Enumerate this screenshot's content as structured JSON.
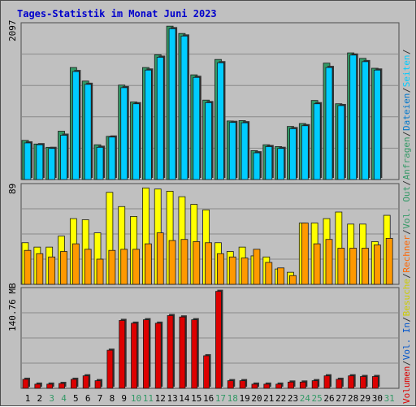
{
  "chart_data": {
    "type": "bar",
    "title": "Tages-Statistik im Monat Juni 2023",
    "colors": {
      "title": "#0000cc",
      "anfragen": "#339966",
      "dateien": "#00ccff",
      "seiten": "#00ccff",
      "besuche": "#ffff00",
      "rechner": "#ff9900",
      "volumen": "#dd0000",
      "weekday_label": "#000000",
      "weekend_label": "#339966",
      "panel_line": "#8a8a8a"
    },
    "categories": [
      "1",
      "2",
      "3",
      "4",
      "5",
      "6",
      "7",
      "8",
      "9",
      "10",
      "11",
      "12",
      "13",
      "14",
      "15",
      "16",
      "17",
      "18",
      "19",
      "20",
      "21",
      "22",
      "23",
      "24",
      "25",
      "26",
      "27",
      "28",
      "29",
      "30",
      "31"
    ],
    "weekend_days": [
      "3",
      "4",
      "10",
      "11",
      "17",
      "18",
      "24",
      "25",
      "31"
    ],
    "panels": [
      {
        "id": "top",
        "ymax": 2097,
        "ymax_label": "2097",
        "right_labels": [
          {
            "text": "Anfragen",
            "color": "#339966"
          },
          {
            "text": "/",
            "color": "#333333"
          },
          {
            "text": "Dateien",
            "color": "#0077cc"
          },
          {
            "text": "/",
            "color": "#333333"
          },
          {
            "text": "Seiten",
            "color": "#00ccff"
          },
          {
            "text": "/",
            "color": "#333333"
          }
        ],
        "series": [
          {
            "name": "Anfragen",
            "color": "#339966",
            "values": [
              535,
              485,
              440,
              660,
              1530,
              1345,
              475,
              590,
              1290,
              1060,
              1530,
              1705,
              2095,
              1995,
              1430,
              1085,
              1640,
              800,
              805,
              395,
              475,
              450,
              725,
              765,
              1080,
              1590,
              1035,
              1730,
              1655,
              1520,
              null
            ]
          },
          {
            "name": "Dateien",
            "color": "#00ccff",
            "values": [
              500,
              475,
              425,
              605,
              1475,
              1300,
              440,
              580,
              1255,
              1035,
              1495,
              1670,
              2060,
              1960,
              1395,
              1050,
              1595,
              780,
              775,
              365,
              450,
              425,
              695,
              735,
              1035,
              1530,
              1010,
              1700,
              1610,
              1495,
              null
            ]
          }
        ]
      },
      {
        "id": "mid",
        "ymax": 89,
        "ymax_label": "89",
        "right_labels": [
          {
            "text": "Besuche",
            "color": "#cccc00"
          },
          {
            "text": "/",
            "color": "#333333"
          },
          {
            "text": "Rechner",
            "color": "#ff6600"
          },
          {
            "text": "/",
            "color": "#333333"
          },
          {
            "text": "Vol. Out",
            "color": "#339966"
          },
          {
            "text": "/",
            "color": "#333333"
          }
        ],
        "series": [
          {
            "name": "Besuche",
            "color": "#ffff00",
            "values": [
              38,
              34,
              34,
              44,
              60,
              59,
              47,
              84,
              71,
              62,
              88,
              87,
              85,
              80,
              73,
              68,
              38,
              30,
              34,
              26,
              25,
              14,
              11,
              56,
              56,
              60,
              66,
              55,
              55,
              39,
              63
            ]
          },
          {
            "name": "Rechner",
            "color": "#ff9900",
            "values": [
              31,
              28,
              25,
              30,
              37,
              32,
              23,
              31,
              32,
              32,
              37,
              47,
              40,
              41,
              39,
              38,
              28,
              25,
              24,
              32,
              20,
              15,
              8,
              56,
              37,
              41,
              33,
              33,
              33,
              36,
              42
            ]
          }
        ]
      },
      {
        "id": "bottom",
        "ymax": 140.76,
        "ymax_label": "140.76 MB",
        "right_labels": [
          {
            "text": "Volumen",
            "color": "#dd0000"
          },
          {
            "text": "/",
            "color": "#333333"
          },
          {
            "text": "Vol. In",
            "color": "#0055cc"
          },
          {
            "text": "/",
            "color": "#333333"
          }
        ],
        "series": [
          {
            "name": "Volumen",
            "color": "#dd0000",
            "values": [
              13,
              6,
              6,
              7,
              13,
              18,
              11,
              55,
              98,
              94,
              99,
              94,
              105,
              103,
              99,
              47,
              140,
              11,
              11,
              6,
              6,
              6,
              9,
              9,
              11,
              18,
              13,
              18,
              17,
              17,
              null
            ]
          }
        ]
      }
    ]
  }
}
